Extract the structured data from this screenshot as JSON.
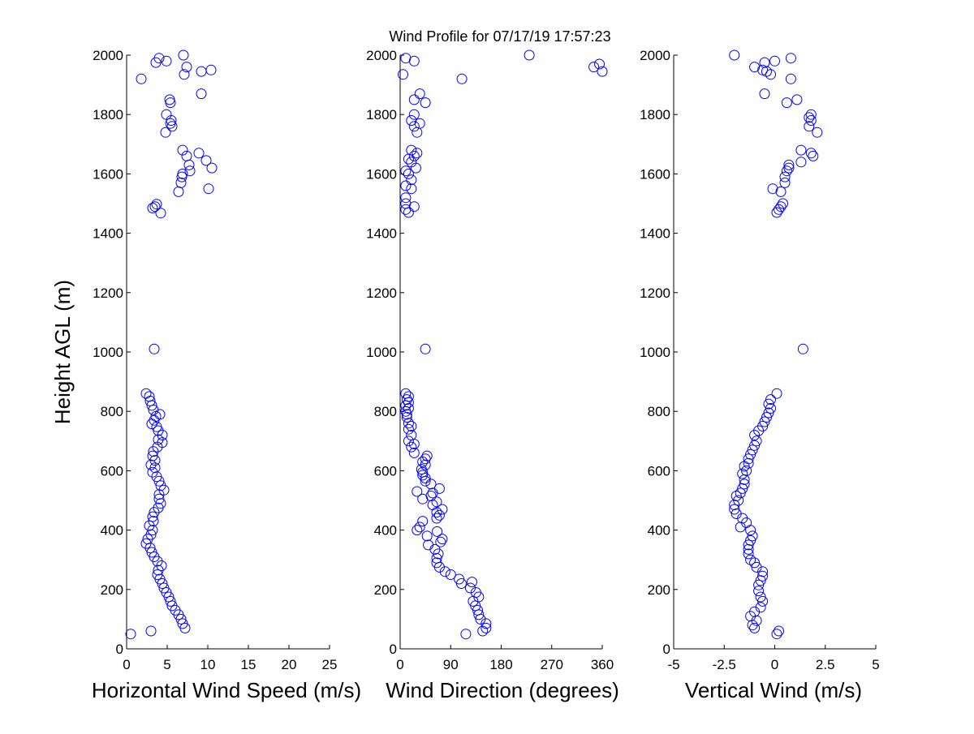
{
  "title": "Wind Profile for  07/17/19 17:57:23",
  "ylabel": "Height AGL (m)",
  "colors": {
    "marker": "#0000ff",
    "axes": "#000000",
    "background": "#ffffff"
  },
  "chart_data": [
    {
      "type": "scatter",
      "name": "horizontal-wind-speed",
      "xlabel": "Horizontal Wind Speed (m/s)",
      "xlim": [
        0,
        25
      ],
      "ylim": [
        0,
        2000
      ],
      "xticks": [
        "0",
        "5",
        "10",
        "15",
        "20",
        "25"
      ],
      "xtick_values": [
        0,
        5,
        10,
        15,
        20,
        25
      ],
      "yticks": [
        "0",
        "200",
        "400",
        "600",
        "800",
        "1000",
        "1200",
        "1400",
        "1600",
        "1800",
        "2000"
      ],
      "ytick_values": [
        0,
        200,
        400,
        600,
        800,
        1000,
        1200,
        1400,
        1600,
        1800,
        2000
      ],
      "points": [
        [
          0.5,
          50
        ],
        [
          3.0,
          60
        ],
        [
          7.2,
          70
        ],
        [
          6.9,
          85
        ],
        [
          6.7,
          100
        ],
        [
          6.4,
          115
        ],
        [
          6.0,
          130
        ],
        [
          5.6,
          145
        ],
        [
          5.4,
          160
        ],
        [
          5.2,
          175
        ],
        [
          4.9,
          190
        ],
        [
          4.6,
          205
        ],
        [
          4.4,
          220
        ],
        [
          4.1,
          235
        ],
        [
          3.8,
          250
        ],
        [
          3.9,
          265
        ],
        [
          4.3,
          280
        ],
        [
          3.8,
          295
        ],
        [
          3.4,
          310
        ],
        [
          3.1,
          325
        ],
        [
          2.9,
          340
        ],
        [
          2.4,
          355
        ],
        [
          2.6,
          370
        ],
        [
          3.0,
          385
        ],
        [
          3.2,
          400
        ],
        [
          2.8,
          415
        ],
        [
          3.3,
          430
        ],
        [
          3.2,
          445
        ],
        [
          3.4,
          460
        ],
        [
          3.9,
          475
        ],
        [
          4.2,
          490
        ],
        [
          4.0,
          505
        ],
        [
          4.0,
          520
        ],
        [
          4.6,
          535
        ],
        [
          4.2,
          550
        ],
        [
          4.0,
          565
        ],
        [
          3.7,
          580
        ],
        [
          3.2,
          595
        ],
        [
          3.5,
          610
        ],
        [
          3.0,
          620
        ],
        [
          3.5,
          635
        ],
        [
          3.2,
          650
        ],
        [
          3.3,
          665
        ],
        [
          3.8,
          680
        ],
        [
          4.4,
          695
        ],
        [
          3.9,
          705
        ],
        [
          4.4,
          720
        ],
        [
          3.9,
          735
        ],
        [
          3.7,
          748
        ],
        [
          3.1,
          758
        ],
        [
          3.4,
          770
        ],
        [
          3.6,
          783
        ],
        [
          4.1,
          790
        ],
        [
          3.3,
          805
        ],
        [
          3.1,
          820
        ],
        [
          2.9,
          835
        ],
        [
          2.8,
          850
        ],
        [
          2.4,
          860
        ],
        [
          3.4,
          1010
        ],
        [
          4.2,
          1468
        ],
        [
          3.2,
          1485
        ],
        [
          3.5,
          1490
        ],
        [
          3.7,
          1498
        ],
        [
          6.4,
          1540
        ],
        [
          10.1,
          1550
        ],
        [
          6.7,
          1570
        ],
        [
          6.8,
          1590
        ],
        [
          6.9,
          1600
        ],
        [
          7.8,
          1610
        ],
        [
          10.5,
          1620
        ],
        [
          7.7,
          1630
        ],
        [
          9.8,
          1645
        ],
        [
          7.4,
          1660
        ],
        [
          8.9,
          1670
        ],
        [
          6.9,
          1680
        ],
        [
          4.8,
          1740
        ],
        [
          5.6,
          1760
        ],
        [
          5.4,
          1770
        ],
        [
          5.5,
          1780
        ],
        [
          4.9,
          1800
        ],
        [
          5.4,
          1840
        ],
        [
          5.3,
          1850
        ],
        [
          9.2,
          1870
        ],
        [
          1.8,
          1920
        ],
        [
          7.1,
          1935
        ],
        [
          9.2,
          1945
        ],
        [
          10.4,
          1950
        ],
        [
          7.4,
          1960
        ],
        [
          3.6,
          1975
        ],
        [
          4.0,
          1990
        ],
        [
          4.9,
          1980
        ],
        [
          7.0,
          2000
        ]
      ]
    },
    {
      "type": "scatter",
      "name": "wind-direction",
      "xlabel": "Wind Direction (degrees)",
      "xlim": [
        0,
        360
      ],
      "ylim": [
        0,
        2000
      ],
      "xticks": [
        "0",
        "90",
        "180",
        "270",
        "360"
      ],
      "xtick_values": [
        0,
        90,
        180,
        270,
        360
      ],
      "yticks": [
        "0",
        "200",
        "400",
        "600",
        "800",
        "1000",
        "1200",
        "1400",
        "1600",
        "1800",
        "2000"
      ],
      "ytick_values": [
        0,
        200,
        400,
        600,
        800,
        1000,
        1200,
        1400,
        1600,
        1800,
        2000
      ],
      "points": [
        [
          117,
          50
        ],
        [
          147,
          60
        ],
        [
          153,
          70
        ],
        [
          153,
          85
        ],
        [
          143,
          100
        ],
        [
          140,
          115
        ],
        [
          138,
          130
        ],
        [
          134,
          145
        ],
        [
          130,
          160
        ],
        [
          140,
          175
        ],
        [
          135,
          190
        ],
        [
          125,
          205
        ],
        [
          109,
          220
        ],
        [
          128,
          225
        ],
        [
          105,
          235
        ],
        [
          90,
          250
        ],
        [
          80,
          260
        ],
        [
          70,
          275
        ],
        [
          65,
          290
        ],
        [
          65,
          305
        ],
        [
          68,
          320
        ],
        [
          62,
          335
        ],
        [
          50,
          350
        ],
        [
          72,
          360
        ],
        [
          75,
          370
        ],
        [
          48,
          380
        ],
        [
          66,
          395
        ],
        [
          30,
          400
        ],
        [
          35,
          410
        ],
        [
          40,
          430
        ],
        [
          65,
          440
        ],
        [
          70,
          450
        ],
        [
          65,
          460
        ],
        [
          75,
          470
        ],
        [
          58,
          485
        ],
        [
          65,
          495
        ],
        [
          40,
          505
        ],
        [
          55,
          515
        ],
        [
          58,
          525
        ],
        [
          30,
          530
        ],
        [
          70,
          540
        ],
        [
          55,
          555
        ],
        [
          45,
          565
        ],
        [
          45,
          575
        ],
        [
          40,
          585
        ],
        [
          40,
          595
        ],
        [
          38,
          605
        ],
        [
          45,
          620
        ],
        [
          40,
          630
        ],
        [
          45,
          640
        ],
        [
          48,
          650
        ],
        [
          25,
          660
        ],
        [
          20,
          680
        ],
        [
          25,
          690
        ],
        [
          15,
          700
        ],
        [
          20,
          720
        ],
        [
          15,
          740
        ],
        [
          20,
          750
        ],
        [
          15,
          760
        ],
        [
          12,
          780
        ],
        [
          12,
          790
        ],
        [
          10,
          800
        ],
        [
          15,
          810
        ],
        [
          10,
          820
        ],
        [
          15,
          830
        ],
        [
          12,
          840
        ],
        [
          15,
          850
        ],
        [
          10,
          860
        ],
        [
          45,
          1010
        ],
        [
          15,
          1470
        ],
        [
          10,
          1480
        ],
        [
          25,
          1490
        ],
        [
          10,
          1500
        ],
        [
          10,
          1520
        ],
        [
          20,
          1550
        ],
        [
          10,
          1560
        ],
        [
          20,
          1580
        ],
        [
          15,
          1600
        ],
        [
          10,
          1610
        ],
        [
          28,
          1620
        ],
        [
          20,
          1640
        ],
        [
          15,
          1650
        ],
        [
          25,
          1660
        ],
        [
          30,
          1670
        ],
        [
          20,
          1680
        ],
        [
          30,
          1740
        ],
        [
          25,
          1760
        ],
        [
          35,
          1770
        ],
        [
          20,
          1780
        ],
        [
          25,
          1800
        ],
        [
          45,
          1840
        ],
        [
          25,
          1850
        ],
        [
          35,
          1870
        ],
        [
          110,
          1920
        ],
        [
          5,
          1935
        ],
        [
          360,
          1945
        ],
        [
          345,
          1960
        ],
        [
          355,
          1970
        ],
        [
          10,
          1990
        ],
        [
          25,
          1980
        ],
        [
          230,
          2000
        ]
      ]
    },
    {
      "type": "scatter",
      "name": "vertical-wind",
      "xlabel": "Vertical Wind (m/s)",
      "xlim": [
        -5,
        5
      ],
      "ylim": [
        0,
        2000
      ],
      "xticks": [
        "-5",
        "-2.5",
        "0",
        "2.5",
        "5"
      ],
      "xtick_values": [
        -5,
        -2.5,
        0,
        2.5,
        5
      ],
      "yticks": [
        "0",
        "200",
        "400",
        "600",
        "800",
        "1000",
        "1200",
        "1400",
        "1600",
        "1800",
        "2000"
      ],
      "ytick_values": [
        0,
        200,
        400,
        600,
        800,
        1000,
        1200,
        1400,
        1600,
        1800,
        2000
      ],
      "points": [
        [
          0.1,
          50
        ],
        [
          0.2,
          60
        ],
        [
          -1.0,
          70
        ],
        [
          -1.1,
          80
        ],
        [
          -0.9,
          95
        ],
        [
          -1.2,
          110
        ],
        [
          -1.0,
          125
        ],
        [
          -0.7,
          140
        ],
        [
          -0.6,
          160
        ],
        [
          -0.7,
          175
        ],
        [
          -0.8,
          195
        ],
        [
          -0.8,
          215
        ],
        [
          -0.7,
          230
        ],
        [
          -0.6,
          245
        ],
        [
          -0.6,
          260
        ],
        [
          -0.9,
          275
        ],
        [
          -1.0,
          290
        ],
        [
          -1.2,
          300
        ],
        [
          -1.3,
          320
        ],
        [
          -1.3,
          335
        ],
        [
          -1.3,
          350
        ],
        [
          -1.2,
          365
        ],
        [
          -1.1,
          380
        ],
        [
          -1.2,
          400
        ],
        [
          -1.7,
          410
        ],
        [
          -1.4,
          425
        ],
        [
          -1.6,
          440
        ],
        [
          -1.9,
          455
        ],
        [
          -2.0,
          470
        ],
        [
          -2.0,
          485
        ],
        [
          -1.8,
          500
        ],
        [
          -1.9,
          515
        ],
        [
          -1.7,
          525
        ],
        [
          -1.6,
          540
        ],
        [
          -1.5,
          555
        ],
        [
          -1.5,
          570
        ],
        [
          -1.6,
          590
        ],
        [
          -1.4,
          600
        ],
        [
          -1.5,
          615
        ],
        [
          -1.3,
          625
        ],
        [
          -1.3,
          640
        ],
        [
          -1.2,
          655
        ],
        [
          -1.1,
          670
        ],
        [
          -1.0,
          685
        ],
        [
          -0.9,
          700
        ],
        [
          -1.0,
          720
        ],
        [
          -0.8,
          735
        ],
        [
          -0.6,
          750
        ],
        [
          -0.5,
          765
        ],
        [
          -0.4,
          780
        ],
        [
          -0.3,
          795
        ],
        [
          -0.2,
          810
        ],
        [
          -0.3,
          825
        ],
        [
          -0.2,
          840
        ],
        [
          0.1,
          860
        ],
        [
          1.4,
          1010
        ],
        [
          0.1,
          1470
        ],
        [
          0.2,
          1480
        ],
        [
          0.3,
          1490
        ],
        [
          0.4,
          1500
        ],
        [
          0.3,
          1540
        ],
        [
          -0.1,
          1550
        ],
        [
          0.5,
          1570
        ],
        [
          0.5,
          1590
        ],
        [
          0.6,
          1610
        ],
        [
          0.7,
          1620
        ],
        [
          0.7,
          1630
        ],
        [
          1.3,
          1640
        ],
        [
          1.9,
          1660
        ],
        [
          1.8,
          1670
        ],
        [
          1.3,
          1680
        ],
        [
          2.1,
          1740
        ],
        [
          1.7,
          1760
        ],
        [
          1.8,
          1780
        ],
        [
          1.7,
          1790
        ],
        [
          1.8,
          1800
        ],
        [
          0.6,
          1840
        ],
        [
          1.1,
          1850
        ],
        [
          -0.5,
          1870
        ],
        [
          0.8,
          1920
        ],
        [
          -0.2,
          1935
        ],
        [
          -0.4,
          1945
        ],
        [
          -0.6,
          1950
        ],
        [
          -1.0,
          1960
        ],
        [
          -0.5,
          1975
        ],
        [
          0.0,
          1980
        ],
        [
          0.8,
          1990
        ],
        [
          -2.0,
          2000
        ]
      ]
    }
  ]
}
